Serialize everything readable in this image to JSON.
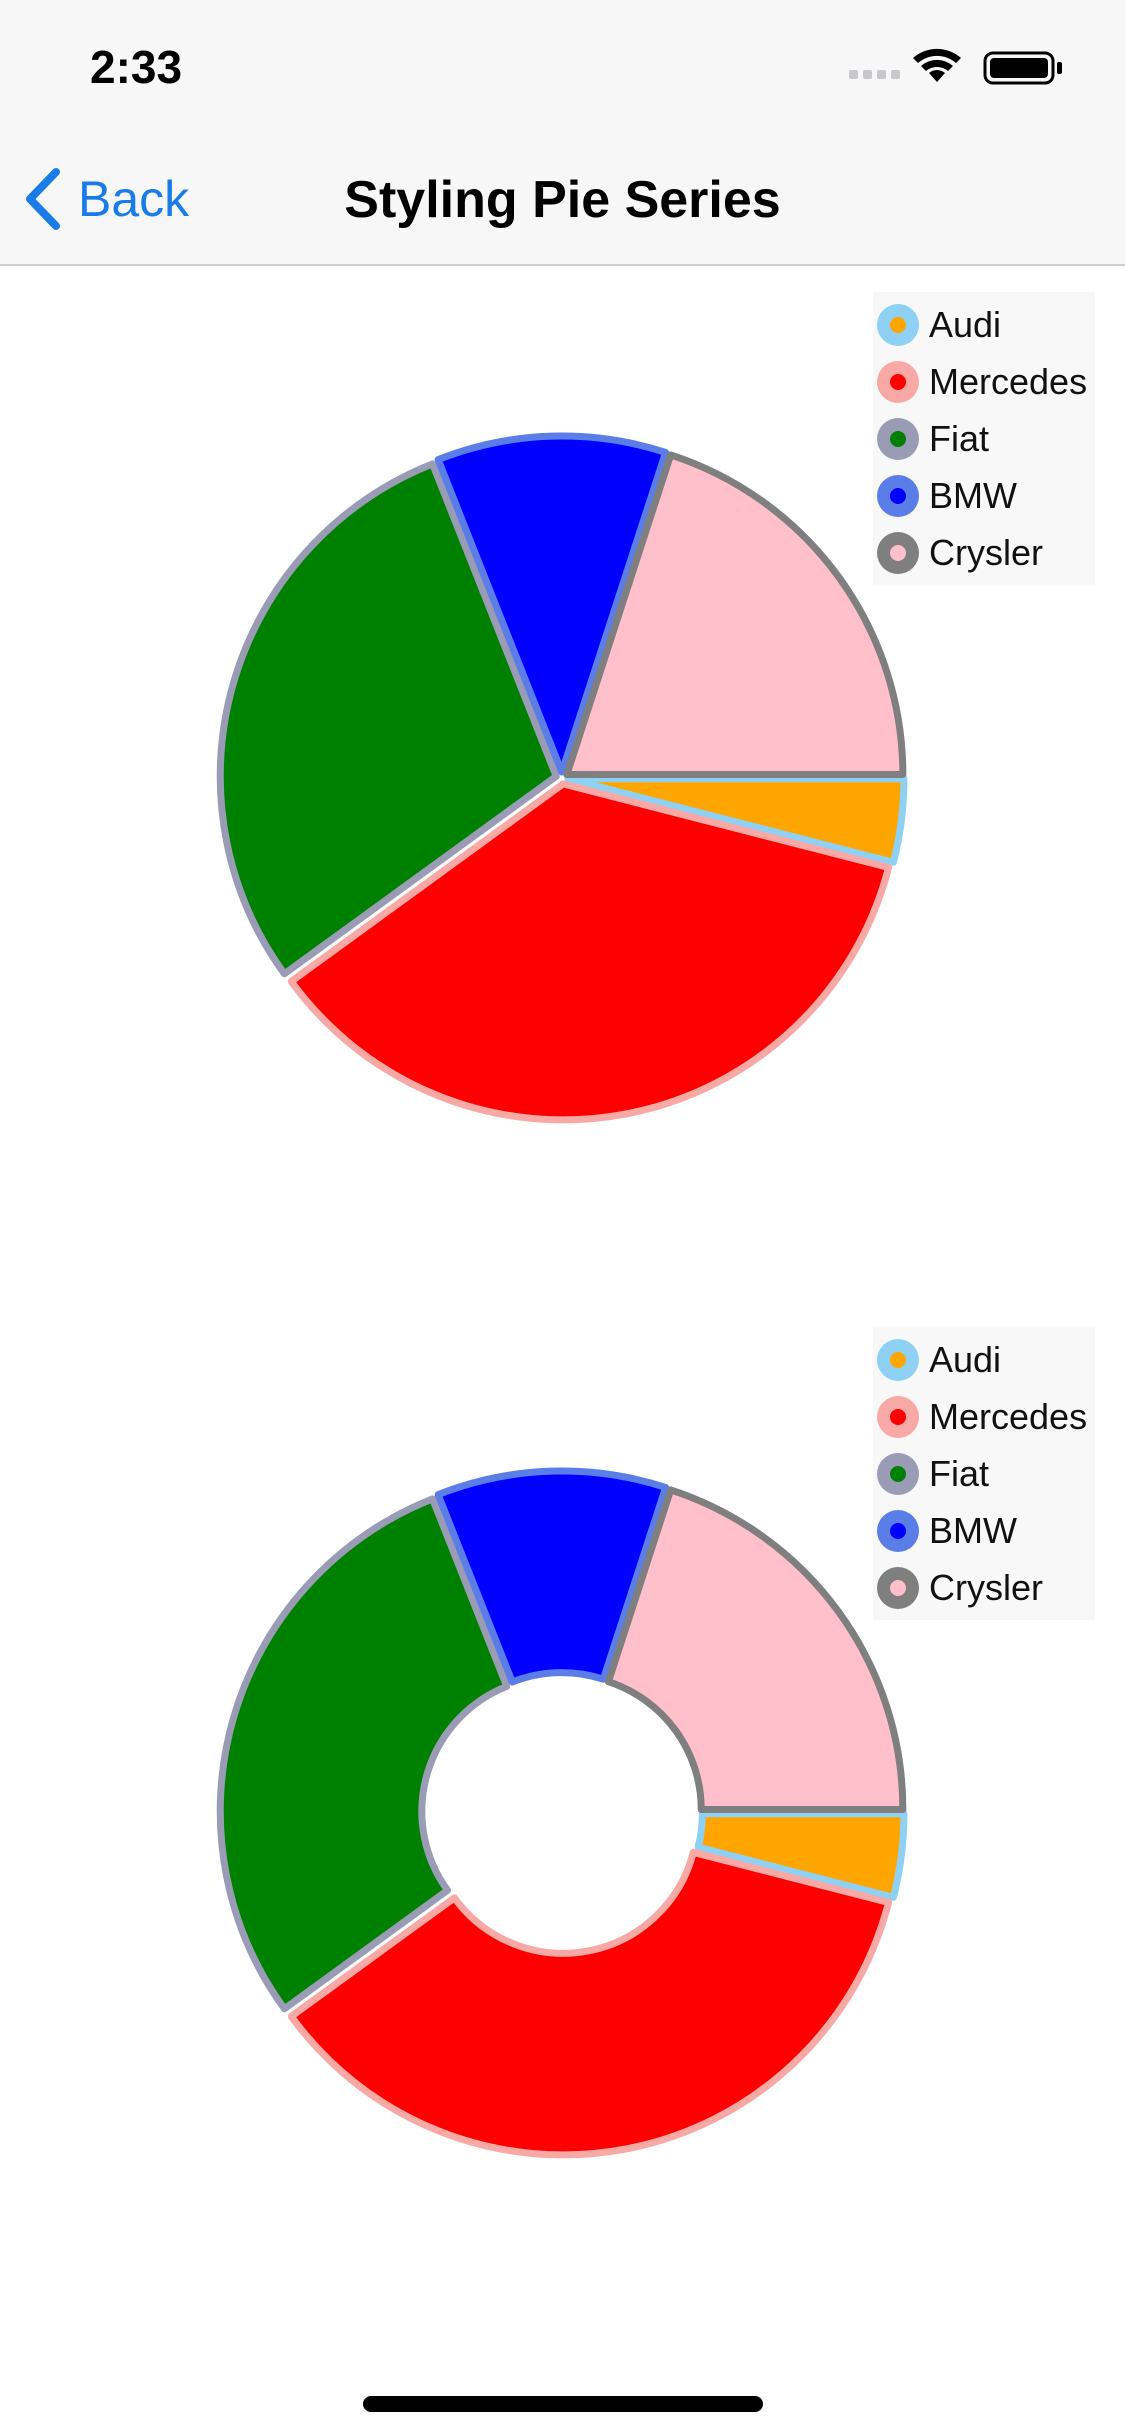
{
  "status_bar": {
    "time": "2:33"
  },
  "nav": {
    "back_label": "Back",
    "title": "Styling Pie Series"
  },
  "chart_data": [
    {
      "type": "pie",
      "categories": [
        "Audi",
        "Mercedes",
        "Fiat",
        "BMW",
        "Crysler"
      ],
      "values": [
        4,
        36,
        29,
        11,
        20
      ],
      "start_angle_deg": 0,
      "inner_radius_ratio": 0,
      "fill_colors": [
        "#ffa500",
        "#ff0000",
        "#008000",
        "#0000ff",
        "#ffc0cb"
      ],
      "stroke_colors": [
        "#8fd0f5",
        "#f8a9a6",
        "#9a9bb4",
        "#5b7de8",
        "#7f7f7f"
      ],
      "legend": "top-right"
    },
    {
      "type": "pie",
      "categories": [
        "Audi",
        "Mercedes",
        "Fiat",
        "BMW",
        "Crysler"
      ],
      "values": [
        4,
        36,
        29,
        11,
        20
      ],
      "start_angle_deg": 0,
      "inner_radius_ratio": 0.4,
      "fill_colors": [
        "#ffa500",
        "#ff0000",
        "#008000",
        "#0000ff",
        "#ffc0cb"
      ],
      "stroke_colors": [
        "#8fd0f5",
        "#f8a9a6",
        "#9a9bb4",
        "#5b7de8",
        "#7f7f7f"
      ],
      "legend": "top-right"
    }
  ]
}
